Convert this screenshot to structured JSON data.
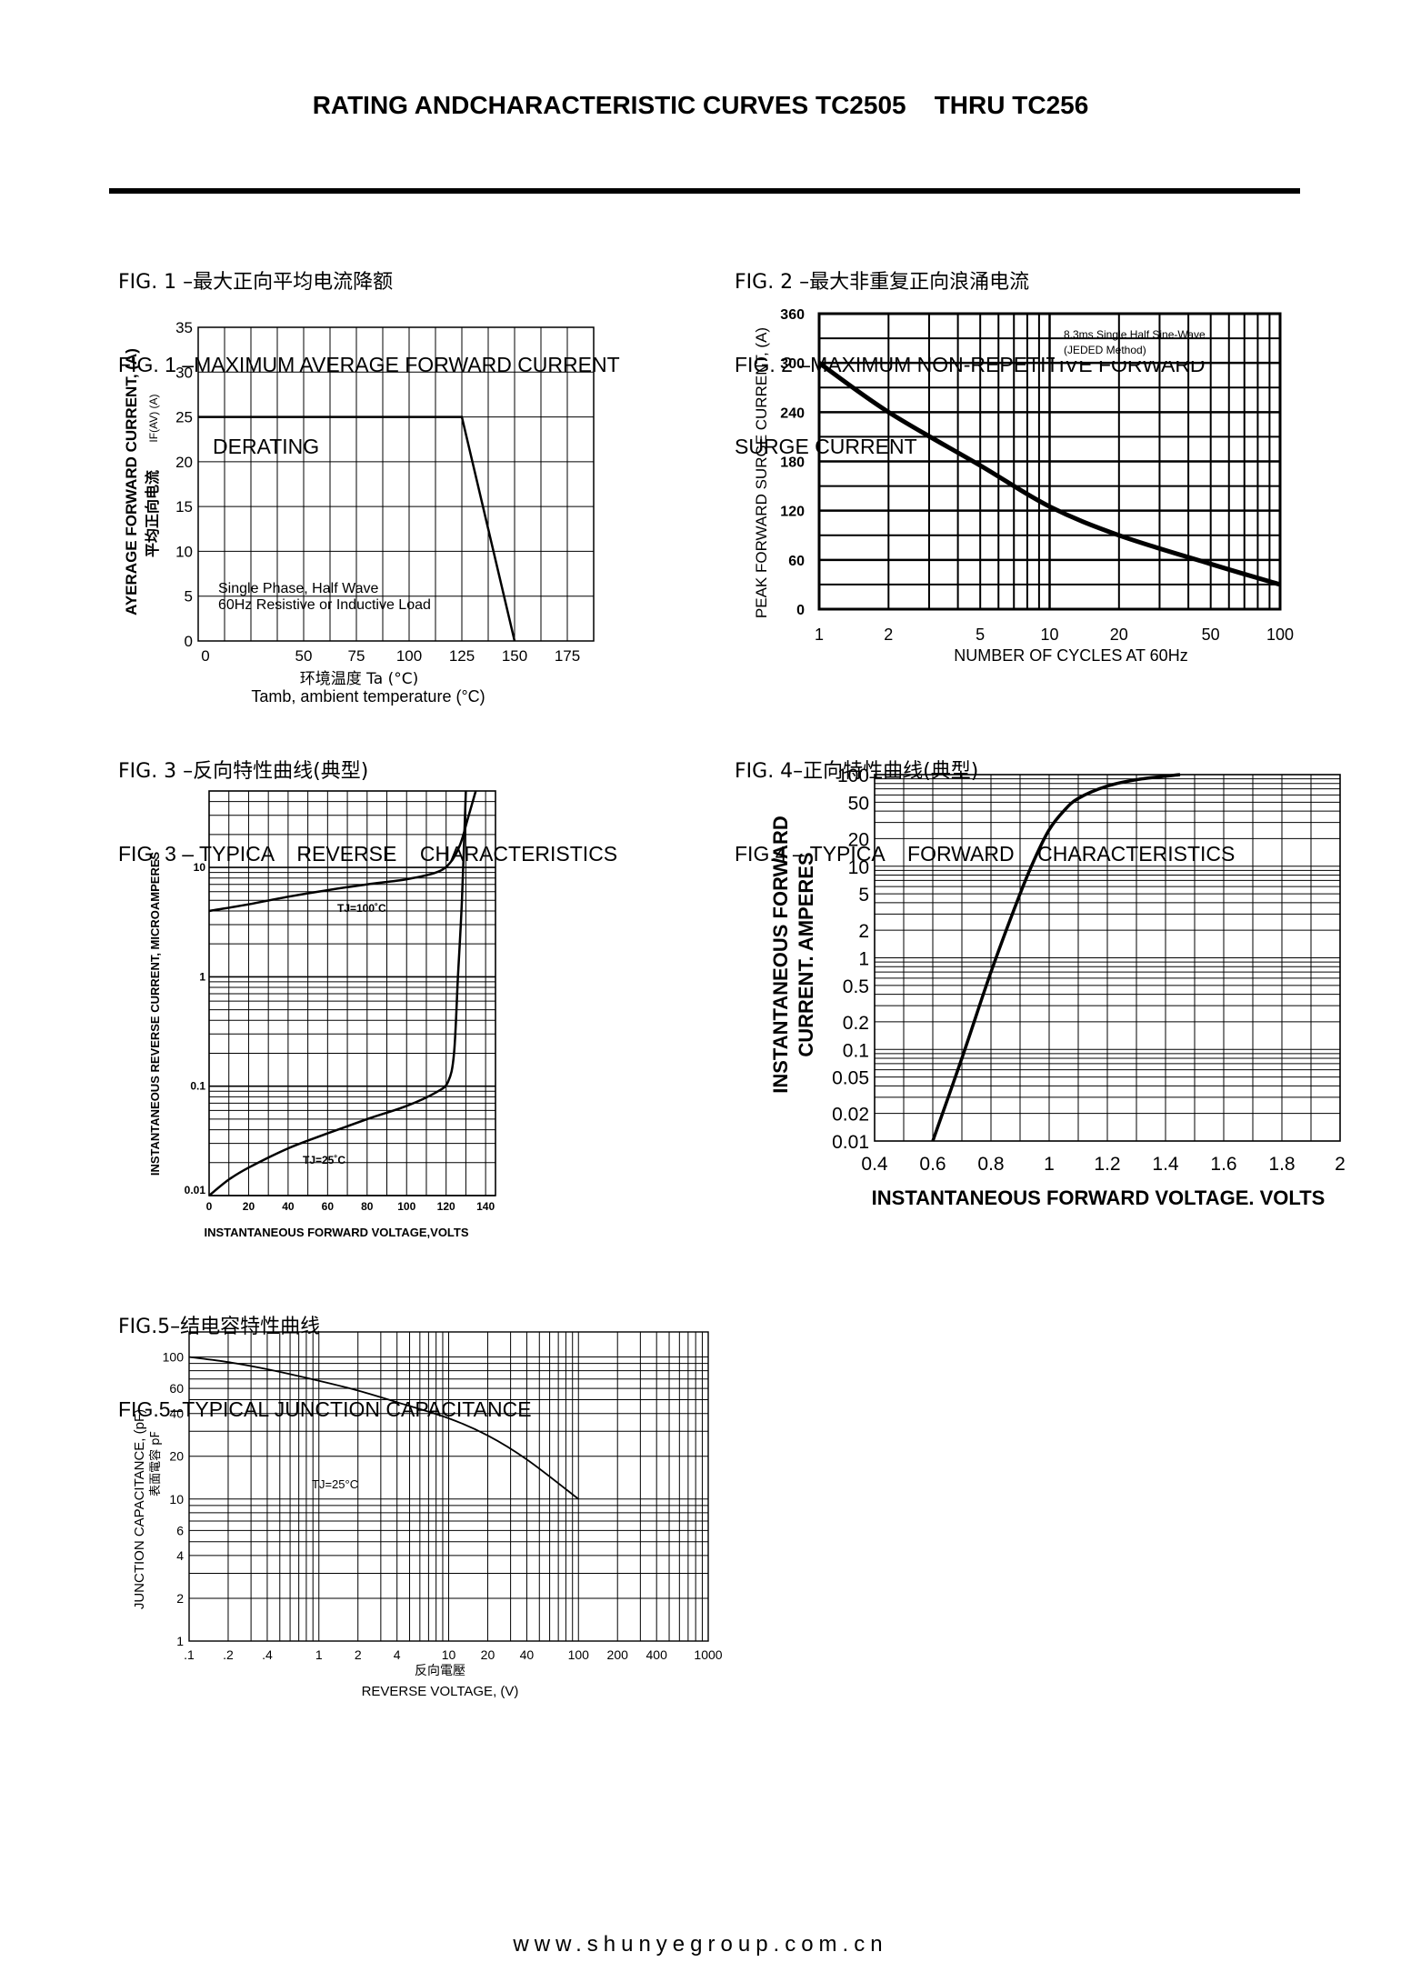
{
  "page": {
    "title": "RATING ANDCHARACTERISTIC CURVES TC2505    THRU TC256",
    "footer": "www.shunyegroup.com.cn"
  },
  "figures": {
    "fig1": {
      "caption_cn": "FIG. 1 –最大正向平均电流降额",
      "caption_en": "FIG. 1 –MAXIMUM AVERAGE FORWARD CURRENT",
      "caption_en2": "DERATING",
      "ylabel": "AYERAGE FORWARD CURRENT, (A)",
      "ylabel_sym": "IF(AV)  (A)",
      "ylabel_cn": "平均正向电流",
      "xlabel_cn": "环境温度  Ta (°C)",
      "xlabel": "Tamb, ambient temperature (°C)",
      "annotation_1": "Single Phase, Half Wave",
      "annotation_2": "60Hz Resistive or Inductive Load"
    },
    "fig2": {
      "caption_cn": "FIG. 2 –最大非重复正向浪涌电流",
      "caption_en": "FIG. 2 –MAXIMUM NON-REPETITIVE FORWARD",
      "caption_en2": "SURGE CURRENT",
      "ylabel": "PEAK FORWARD SURGE CURRENT, (A)",
      "xlabel": "NUMBER OF CYCLES AT 60Hz",
      "annotation_1": "8.3ms Single Half Sine-Wave",
      "annotation_2": "(JEDED Method)"
    },
    "fig3": {
      "caption_cn": "FIG. 3 –反向特性曲线(典型)",
      "caption_en": "FIG. 3 – TYPICA    REVERSE    CHARACTERISTICS",
      "ylabel": "INSTANTANEOUS REVERSE CURRENT, MICROAMPERES",
      "xlabel": "INSTANTANEOUS FORWARD VOLTAGE,VOLTS",
      "label_100": "TJ=100˚C",
      "label_25": "TJ=25˚C"
    },
    "fig4": {
      "caption_cn": "FIG. 4–正向特性曲线(典型)",
      "caption_en": "FIG.4 – TYPICA    FORWARD    CHARACTERISTICS",
      "ylabel_1": "INSTANTANEOUS  FORWARD",
      "ylabel_2": "CURRENT.  AMPERES",
      "xlabel": "INSTANTANEOUS  FORWARD  VOLTAGE.  VOLTS"
    },
    "fig5": {
      "caption_cn": "FIG.5–结电容特性曲线",
      "caption_en": "FIG.5–TYPICAL JUNCTION CAPACITANCE",
      "ylabel": "JUNCTION CAPACITANCE, (pF)",
      "ylabel_cn": "表面電容  pF",
      "xlabel_cn": "反向電壓",
      "xlabel": "REVERSE VOLTAGE, (V)",
      "label_tj": "TJ=25°C"
    }
  },
  "chart_data": [
    {
      "id": "fig1",
      "type": "line",
      "x_ticks": [
        0,
        50,
        75,
        100,
        125,
        150,
        175
      ],
      "x_tick_labels": [
        "0",
        "50",
        "75",
        "100",
        "125",
        "150",
        "175"
      ],
      "y_ticks": [
        0,
        5,
        10,
        15,
        20,
        25,
        30,
        35
      ],
      "xlim": [
        0,
        187.5
      ],
      "ylim": [
        0,
        35
      ],
      "grid": true,
      "series": [
        {
          "x": [
            0,
            125,
            150
          ],
          "y": [
            25,
            25,
            0
          ]
        }
      ]
    },
    {
      "id": "fig2",
      "type": "line",
      "x_scale": "log",
      "x_ticks": [
        1,
        2,
        5,
        10,
        20,
        50,
        100
      ],
      "y_ticks": [
        0,
        60,
        120,
        180,
        240,
        300,
        360
      ],
      "xlim": [
        1,
        100
      ],
      "ylim": [
        0,
        360
      ],
      "grid": true,
      "series": [
        {
          "x": [
            1,
            2,
            5,
            10,
            20,
            50,
            100
          ],
          "y": [
            300,
            240,
            175,
            125,
            90,
            55,
            30
          ]
        }
      ]
    },
    {
      "id": "fig3",
      "type": "line",
      "y_scale": "log",
      "x_ticks": [
        0,
        20,
        40,
        60,
        80,
        100,
        120,
        140
      ],
      "y_ticks": [
        0.01,
        0.1,
        1,
        10
      ],
      "y_tick_labels": [
        "0.01",
        "0.1",
        "1",
        "10"
      ],
      "xlim": [
        0,
        145
      ],
      "ylim": [
        0.01,
        50
      ],
      "grid": true,
      "series": [
        {
          "name": "TJ=100˚C",
          "x": [
            0,
            20,
            40,
            60,
            80,
            100,
            115,
            122,
            127,
            131,
            135
          ],
          "y": [
            4,
            4.6,
            5.4,
            6.2,
            7,
            7.8,
            9,
            11,
            16,
            28,
            50
          ]
        },
        {
          "name": "TJ=25˚C",
          "x": [
            0,
            10,
            20,
            40,
            60,
            80,
            100,
            115,
            121,
            124,
            126,
            128,
            130
          ],
          "y": [
            0.01,
            0.014,
            0.018,
            0.027,
            0.037,
            0.05,
            0.066,
            0.088,
            0.11,
            0.2,
            1,
            5,
            50
          ]
        }
      ]
    },
    {
      "id": "fig4",
      "type": "line",
      "y_scale": "log",
      "x_ticks": [
        0.4,
        0.6,
        0.8,
        1,
        1.2,
        1.4,
        1.6,
        1.8,
        2
      ],
      "x_tick_labels": [
        "0.4",
        "0.6",
        "0.8",
        "1",
        "1.2",
        "1.4",
        "1.6",
        "1.8",
        "2"
      ],
      "y_ticks": [
        0.01,
        0.02,
        0.05,
        0.1,
        0.2,
        0.5,
        1,
        2,
        5,
        10,
        20,
        50,
        100
      ],
      "y_tick_labels": [
        "0.01",
        "0.02",
        "0.05",
        "0.1",
        "0.2",
        "0.5",
        "1",
        "2",
        "5",
        "10",
        "20",
        "50",
        "100"
      ],
      "xlim": [
        0.4,
        2
      ],
      "ylim": [
        0.01,
        100
      ],
      "grid": true,
      "series": [
        {
          "x": [
            0.6,
            0.7,
            0.8,
            0.9,
            0.95,
            1.0,
            1.05,
            1.1,
            1.2,
            1.3,
            1.45
          ],
          "y": [
            0.01,
            0.08,
            0.7,
            5,
            12,
            25,
            40,
            55,
            75,
            88,
            100
          ]
        }
      ]
    },
    {
      "id": "fig5",
      "type": "line",
      "x_scale": "log",
      "y_scale": "log",
      "x_ticks": [
        0.1,
        0.2,
        0.4,
        1,
        2,
        4,
        10,
        20,
        40,
        100,
        200,
        400,
        1000
      ],
      "x_tick_labels": [
        ".1",
        ".2",
        ".4",
        "1",
        "2",
        "4",
        "10",
        "20",
        "40",
        "100",
        "200",
        "400",
        "1000"
      ],
      "y_ticks": [
        1,
        2,
        4,
        6,
        10,
        20,
        40,
        60,
        100
      ],
      "y_tick_labels": [
        "1",
        "2",
        "4",
        "6",
        "10",
        "20",
        "40",
        "60",
        "100"
      ],
      "xlim": [
        0.1,
        1000
      ],
      "ylim": [
        1,
        150
      ],
      "grid": true,
      "series": [
        {
          "x": [
            0.1,
            0.2,
            0.4,
            1,
            2,
            4,
            10,
            20,
            40,
            100
          ],
          "y": [
            100,
            92,
            82,
            68,
            58,
            48,
            37,
            28,
            19,
            10
          ]
        }
      ]
    }
  ]
}
